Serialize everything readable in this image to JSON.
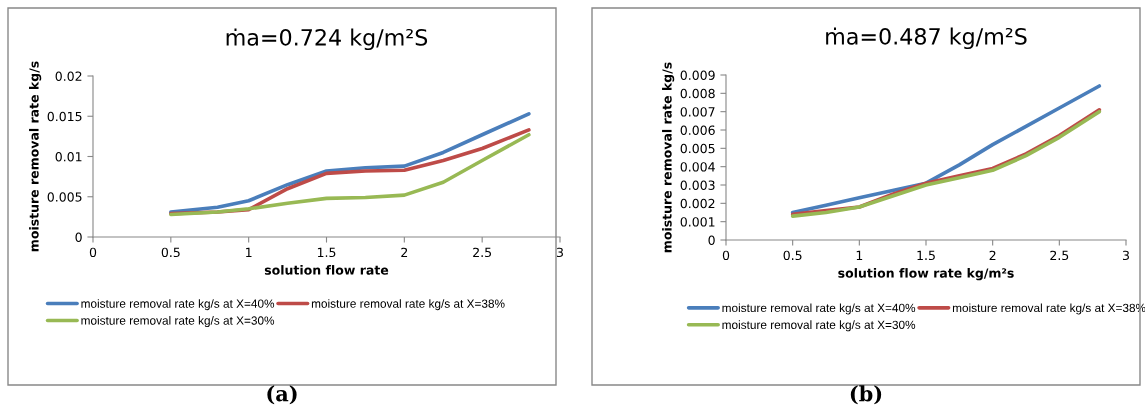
{
  "chart_data": [
    {
      "type": "line",
      "title": "ṁa=0.724 kg/m²S",
      "xlabel": "solution flow rate",
      "ylabel": "moisture removal rate kg/s",
      "x": [
        0.5,
        0.8,
        1,
        1.25,
        1.5,
        1.75,
        2,
        2.25,
        2.5,
        2.8
      ],
      "series": [
        {
          "name": "moisture removal rate kg/s at X=40%",
          "color": "#4a7ebb",
          "values": [
            0.0031,
            0.0037,
            0.0045,
            0.0065,
            0.0082,
            0.0086,
            0.0088,
            0.0105,
            0.0127,
            0.0153
          ]
        },
        {
          "name": "moisture removal rate kg/s at X=38%",
          "color": "#be4b48",
          "values": [
            0.0029,
            0.0031,
            0.0034,
            0.006,
            0.0079,
            0.0082,
            0.0083,
            0.0095,
            0.011,
            0.0133
          ]
        },
        {
          "name": "moisture removal rate kg/s at X=30%",
          "color": "#98b954",
          "values": [
            0.0028,
            0.0031,
            0.0035,
            0.0042,
            0.0048,
            0.0049,
            0.0052,
            0.0068,
            0.0095,
            0.0127
          ]
        }
      ],
      "xlim": [
        0,
        3
      ],
      "xticks": [
        0,
        0.5,
        1,
        1.5,
        2,
        2.5,
        3
      ],
      "ylim": [
        0,
        0.02
      ],
      "yticks": [
        0,
        0.005,
        0.01,
        0.015,
        0.02
      ],
      "grid": false,
      "legend": "bottom",
      "marker": "none",
      "line_style": "solid",
      "annotations": [
        "(a)"
      ]
    },
    {
      "type": "line",
      "title": "ṁa=0.487 kg/m²S",
      "xlabel": "solution flow rate kg/m²s",
      "ylabel": "moisture removal rate kg/s",
      "x": [
        0.5,
        0.75,
        1,
        1.25,
        1.5,
        1.75,
        2,
        2.25,
        2.5,
        2.8
      ],
      "series": [
        {
          "name": "moisture removal rate kg/s at X=40%",
          "color": "#4a7ebb",
          "values": [
            0.0015,
            0.0019,
            0.0023,
            0.0027,
            0.0031,
            0.0041,
            0.0052,
            0.0062,
            0.0072,
            0.0084
          ]
        },
        {
          "name": "moisture removal rate kg/s at X=38%",
          "color": "#be4b48",
          "values": [
            0.0014,
            0.0016,
            0.0018,
            0.0025,
            0.0031,
            0.0035,
            0.0039,
            0.0047,
            0.0057,
            0.0071
          ]
        },
        {
          "name": "moisture removal rate kg/s at X=30%",
          "color": "#98b954",
          "values": [
            0.0013,
            0.0015,
            0.0018,
            0.0024,
            0.003,
            0.0034,
            0.0038,
            0.0046,
            0.0056,
            0.007
          ]
        }
      ],
      "xlim": [
        0,
        3
      ],
      "xticks": [
        0,
        0.5,
        1,
        1.5,
        2,
        2.5,
        3
      ],
      "ylim": [
        0,
        0.009
      ],
      "yticks": [
        0,
        0.001,
        0.002,
        0.003,
        0.004,
        0.005,
        0.006,
        0.007,
        0.008,
        0.009
      ],
      "grid": false,
      "legend": "bottom",
      "marker": "none",
      "line_style": "solid",
      "annotations": [
        "(b)"
      ]
    }
  ]
}
